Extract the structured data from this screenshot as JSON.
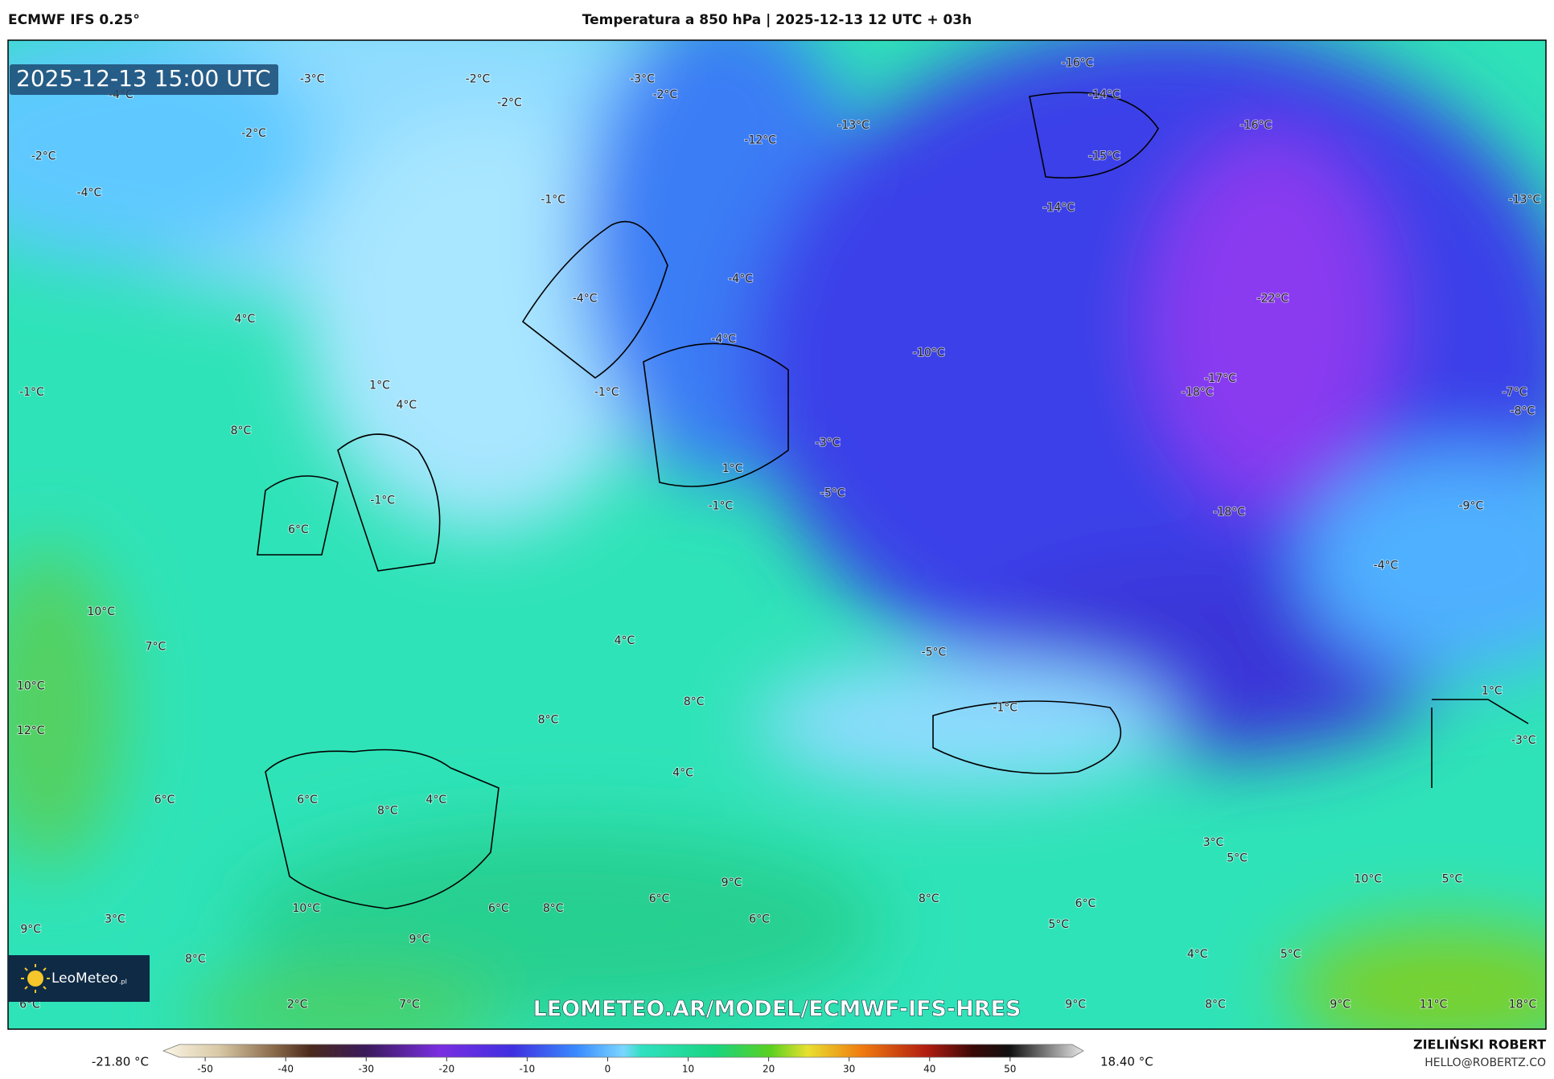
{
  "header": {
    "model": "ECMWF IFS 0.25°",
    "title": "Temperatura a 850 hPa | 2025-12-13 12 UTC + 03h"
  },
  "timestamp": "2025-12-13 15:00 UTC",
  "logo": {
    "name": "LeoMeteo",
    "suffix": ".pl"
  },
  "url": "LEOMETEO.AR/MODEL/ECMWF-IFS-HRES",
  "author": {
    "name": "ZIELIŃSKI ROBERT",
    "email": "HELLO@ROBERTZ.CO"
  },
  "colorbar": {
    "min_label": "-21.80 °C",
    "max_label": "18.40 °C",
    "ticks": [
      -50,
      -40,
      -30,
      -20,
      -10,
      0,
      10,
      20,
      30,
      40,
      50
    ]
  },
  "labels": [
    "-3°C",
    "-4°C",
    "-2°C",
    "-2°C",
    "-3°C",
    "-2°C",
    "-2°C",
    "-2°C",
    "-4°C",
    "-1°C",
    "-12°C",
    "-13°C",
    "-16°C",
    "-14°C",
    "-16°C",
    "-15°C",
    "-14°C",
    "-13°C",
    "-4°C",
    "-4°C",
    "-4°C",
    "-22°C",
    "4°C",
    "-10°C",
    "-1°C",
    "1°C",
    "4°C",
    "-1°C",
    "-17°C",
    "-18°C",
    "-7°C",
    "-8°C",
    "8°C",
    "-3°C",
    "1°C",
    "-5°C",
    "-1°C",
    "-1°C",
    "6°C",
    "-18°C",
    "-9°C",
    "-4°C",
    "10°C",
    "7°C",
    "4°C",
    "-5°C",
    "10°C",
    "-1°C",
    "1°C",
    "8°C",
    "8°C",
    "12°C",
    "-3°C",
    "4°C",
    "6°C",
    "6°C",
    "4°C",
    "8°C",
    "3°C",
    "5°C",
    "9°C",
    "10°C",
    "5°C",
    "8°C",
    "6°C",
    "6°C",
    "10°C",
    "6°C",
    "8°C",
    "3°C",
    "6°C",
    "5°C",
    "9°C",
    "9°C",
    "8°C",
    "4°C",
    "5°C",
    "6°C",
    "2°C",
    "7°C",
    "9°C",
    "8°C",
    "9°C",
    "11°C",
    "18°C"
  ]
}
